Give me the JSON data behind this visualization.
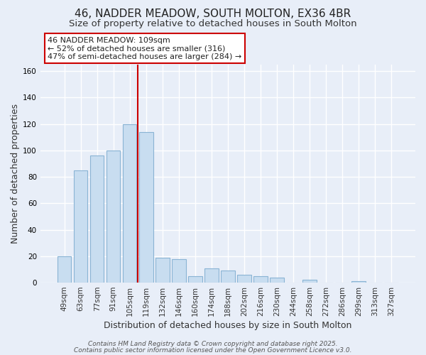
{
  "title": "46, NADDER MEADOW, SOUTH MOLTON, EX36 4BR",
  "subtitle": "Size of property relative to detached houses in South Molton",
  "xlabel": "Distribution of detached houses by size in South Molton",
  "ylabel": "Number of detached properties",
  "bar_labels": [
    "49sqm",
    "63sqm",
    "77sqm",
    "91sqm",
    "105sqm",
    "119sqm",
    "132sqm",
    "146sqm",
    "160sqm",
    "174sqm",
    "188sqm",
    "202sqm",
    "216sqm",
    "230sqm",
    "244sqm",
    "258sqm",
    "272sqm",
    "286sqm",
    "299sqm",
    "313sqm",
    "327sqm"
  ],
  "bar_values": [
    20,
    85,
    96,
    100,
    120,
    114,
    19,
    18,
    5,
    11,
    9,
    6,
    5,
    4,
    0,
    2,
    0,
    0,
    1,
    0,
    0
  ],
  "bar_color": "#c8ddf0",
  "bar_edge_color": "#8ab4d4",
  "vline_x_index": 4.5,
  "vline_color": "#cc0000",
  "annotation_line1": "46 NADDER MEADOW: 109sqm",
  "annotation_line2": "← 52% of detached houses are smaller (316)",
  "annotation_line3": "47% of semi-detached houses are larger (284) →",
  "background_color": "#e8eef8",
  "grid_color": "#ffffff",
  "footer_line1": "Contains HM Land Registry data © Crown copyright and database right 2025.",
  "footer_line2": "Contains public sector information licensed under the Open Government Licence v3.0.",
  "ylim": [
    0,
    165
  ],
  "yticks": [
    0,
    20,
    40,
    60,
    80,
    100,
    120,
    140,
    160
  ],
  "title_fontsize": 11,
  "subtitle_fontsize": 9.5,
  "axis_label_fontsize": 9,
  "tick_fontsize": 7.5,
  "annotation_fontsize": 8,
  "footer_fontsize": 6.5
}
